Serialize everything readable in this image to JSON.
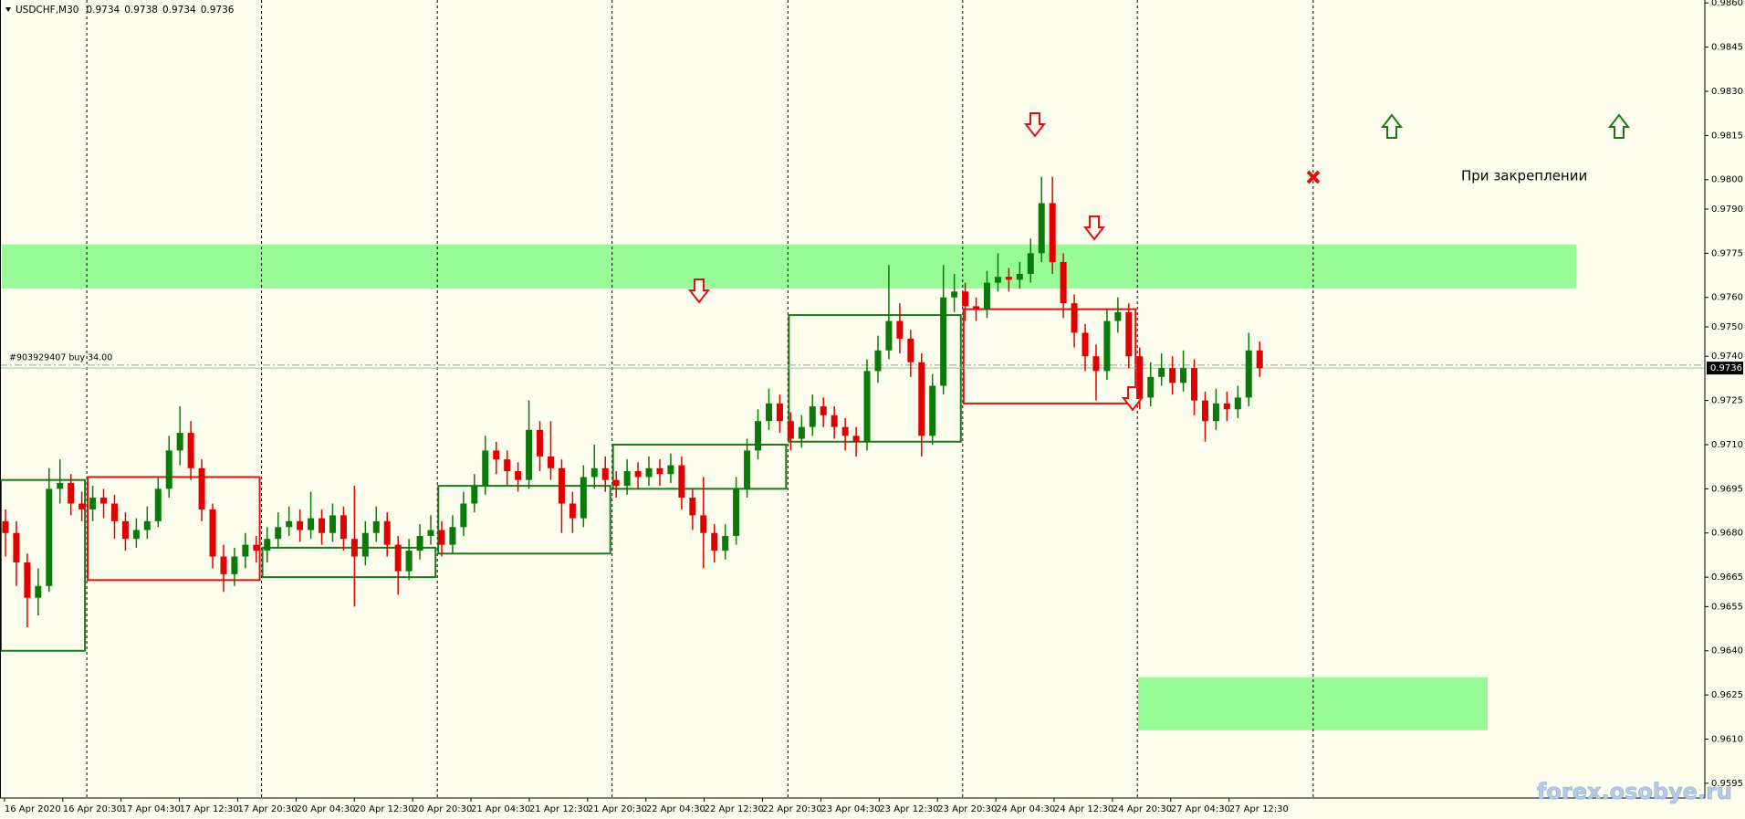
{
  "chart_data": {
    "type": "candlestick",
    "symbol": "USDCHF,M30",
    "quote": [
      0.9734,
      0.9738,
      0.9734,
      0.9736
    ],
    "annotation": "При закреплении",
    "watermark": "forex.osobye.ru",
    "order": {
      "label": "#903929407 buy 34.00",
      "price": 0.9737
    },
    "bid": 0.9736,
    "bull_color": "#0a7a0a",
    "bear_color": "#e00000",
    "x_labels": [
      "16 Apr 2020",
      "16 Apr 20:30",
      "17 Apr 04:30",
      "17 Apr 12:30",
      "17 Apr 20:30",
      "20 Apr 04:30",
      "20 Apr 12:30",
      "20 Apr 20:30",
      "21 Apr 04:30",
      "21 Apr 12:30",
      "21 Apr 20:30",
      "22 Apr 04:30",
      "22 Apr 12:30",
      "22 Apr 20:30",
      "23 Apr 04:30",
      "23 Apr 12:30",
      "23 Apr 20:30",
      "24 Apr 04:30",
      "24 Apr 12:30",
      "24 Apr 20:30",
      "27 Apr 04:30",
      "27 Apr 12:30"
    ],
    "ylim": [
      0.959,
      0.9861
    ],
    "yticks": [
      {
        "value": 0.986,
        "label": "0.9860"
      },
      {
        "value": 0.9845,
        "label": "0.9845"
      },
      {
        "value": 0.983,
        "label": "0.9830"
      },
      {
        "value": 0.9815,
        "label": "0.9815"
      },
      {
        "value": 0.98,
        "label": "0.9800"
      },
      {
        "value": 0.979,
        "label": "0.9790"
      },
      {
        "value": 0.9775,
        "label": "0.9775"
      },
      {
        "value": 0.976,
        "label": "0.9760"
      },
      {
        "value": 0.975,
        "label": "0.9750"
      },
      {
        "value": 0.974,
        "label": "0.9740"
      },
      {
        "value": 0.9725,
        "label": "0.9725"
      },
      {
        "value": 0.971,
        "label": "0.9710"
      },
      {
        "value": 0.9695,
        "label": "0.9695"
      },
      {
        "value": 0.968,
        "label": "0.9680"
      },
      {
        "value": 0.9665,
        "label": "0.9665"
      },
      {
        "value": 0.9655,
        "label": "0.9655"
      },
      {
        "value": 0.964,
        "label": "0.9640"
      },
      {
        "value": 0.9625,
        "label": "0.9625"
      },
      {
        "value": 0.961,
        "label": "0.9610"
      },
      {
        "value": 0.9595,
        "label": "0.9595"
      }
    ],
    "zones": [
      {
        "top": 0.9778,
        "bottom": 0.9763,
        "color": "#98fb98"
      },
      {
        "top": 0.9631,
        "bottom": 0.9613,
        "color": "#98fb98"
      }
    ],
    "boxes": [
      {
        "top": 0.9698,
        "bottom": 0.964,
        "color": "#1a7a1a"
      },
      {
        "top": 0.9699,
        "bottom": 0.9664,
        "color": "#e01010"
      },
      {
        "top": 0.9675,
        "bottom": 0.9665,
        "color": "#1a7a1a"
      },
      {
        "top": 0.9696,
        "bottom": 0.9673,
        "color": "#1a7a1a"
      },
      {
        "top": 0.971,
        "bottom": 0.9695,
        "color": "#1a7a1a"
      },
      {
        "top": 0.9754,
        "bottom": 0.9711,
        "color": "#1a7a1a"
      },
      {
        "top": 0.9756,
        "bottom": 0.9724,
        "color": "#e01010"
      }
    ],
    "candles": [
      [
        0.9684,
        0.9688,
        0.9672,
        0.968
      ],
      [
        0.968,
        0.9684,
        0.9662,
        0.967
      ],
      [
        0.967,
        0.9673,
        0.9648,
        0.9658
      ],
      [
        0.9658,
        0.9668,
        0.9652,
        0.9662
      ],
      [
        0.9662,
        0.9702,
        0.966,
        0.9695
      ],
      [
        0.9695,
        0.9705,
        0.969,
        0.9697
      ],
      [
        0.9697,
        0.97,
        0.9686,
        0.969
      ],
      [
        0.969,
        0.9694,
        0.9684,
        0.9688
      ],
      [
        0.9688,
        0.9696,
        0.9684,
        0.9692
      ],
      [
        0.9692,
        0.9695,
        0.9685,
        0.969
      ],
      [
        0.969,
        0.9693,
        0.9678,
        0.9684
      ],
      [
        0.9684,
        0.9687,
        0.9674,
        0.9678
      ],
      [
        0.9678,
        0.9685,
        0.9675,
        0.9681
      ],
      [
        0.9681,
        0.9689,
        0.9678,
        0.9684
      ],
      [
        0.9684,
        0.9699,
        0.9682,
        0.9695
      ],
      [
        0.9695,
        0.9713,
        0.9692,
        0.9708
      ],
      [
        0.9708,
        0.9723,
        0.9703,
        0.9714
      ],
      [
        0.9714,
        0.9718,
        0.9698,
        0.9702
      ],
      [
        0.9702,
        0.9705,
        0.9684,
        0.9688
      ],
      [
        0.9688,
        0.969,
        0.9668,
        0.9672
      ],
      [
        0.9672,
        0.9676,
        0.966,
        0.9666
      ],
      [
        0.9666,
        0.9675,
        0.9662,
        0.9672
      ],
      [
        0.9672,
        0.968,
        0.9668,
        0.9676
      ],
      [
        0.9676,
        0.9679,
        0.967,
        0.9674
      ],
      [
        0.9674,
        0.9682,
        0.967,
        0.9678
      ],
      [
        0.9678,
        0.9687,
        0.9675,
        0.9682
      ],
      [
        0.9682,
        0.9689,
        0.9679,
        0.9684
      ],
      [
        0.9684,
        0.9688,
        0.9677,
        0.9681
      ],
      [
        0.9681,
        0.9694,
        0.9678,
        0.9685
      ],
      [
        0.9685,
        0.9688,
        0.9676,
        0.968
      ],
      [
        0.968,
        0.969,
        0.9677,
        0.9686
      ],
      [
        0.9686,
        0.9689,
        0.9674,
        0.9678
      ],
      [
        0.9678,
        0.9696,
        0.9655,
        0.9672
      ],
      [
        0.9672,
        0.9684,
        0.9669,
        0.968
      ],
      [
        0.968,
        0.9689,
        0.9677,
        0.9684
      ],
      [
        0.9684,
        0.9687,
        0.9672,
        0.9676
      ],
      [
        0.9676,
        0.9679,
        0.9659,
        0.9667
      ],
      [
        0.9667,
        0.9678,
        0.9664,
        0.9674
      ],
      [
        0.9674,
        0.9683,
        0.9671,
        0.9679
      ],
      [
        0.9679,
        0.9686,
        0.9676,
        0.9681
      ],
      [
        0.9681,
        0.9684,
        0.9672,
        0.9676
      ],
      [
        0.9676,
        0.9686,
        0.9673,
        0.9682
      ],
      [
        0.9682,
        0.9694,
        0.9679,
        0.969
      ],
      [
        0.969,
        0.97,
        0.9687,
        0.9696
      ],
      [
        0.9696,
        0.9713,
        0.9693,
        0.9708
      ],
      [
        0.9708,
        0.9711,
        0.97,
        0.9705
      ],
      [
        0.9705,
        0.9708,
        0.9696,
        0.9701
      ],
      [
        0.9701,
        0.9704,
        0.9694,
        0.9698
      ],
      [
        0.9698,
        0.9725,
        0.9695,
        0.9715
      ],
      [
        0.9715,
        0.9718,
        0.9701,
        0.9706
      ],
      [
        0.9706,
        0.9718,
        0.9698,
        0.9702
      ],
      [
        0.9702,
        0.9705,
        0.968,
        0.969
      ],
      [
        0.969,
        0.9694,
        0.968,
        0.9685
      ],
      [
        0.9685,
        0.9703,
        0.9682,
        0.9699
      ],
      [
        0.9699,
        0.971,
        0.9695,
        0.9702
      ],
      [
        0.9702,
        0.9706,
        0.9694,
        0.9698
      ],
      [
        0.9698,
        0.9701,
        0.9692,
        0.9696
      ],
      [
        0.9696,
        0.9705,
        0.9693,
        0.9701
      ],
      [
        0.9701,
        0.9704,
        0.9695,
        0.9699
      ],
      [
        0.9699,
        0.9706,
        0.9696,
        0.9702
      ],
      [
        0.9702,
        0.9705,
        0.9696,
        0.97
      ],
      [
        0.97,
        0.9707,
        0.9697,
        0.9703
      ],
      [
        0.9703,
        0.9706,
        0.9688,
        0.9692
      ],
      [
        0.9692,
        0.9695,
        0.9681,
        0.9686
      ],
      [
        0.9686,
        0.9699,
        0.9668,
        0.968
      ],
      [
        0.968,
        0.9683,
        0.967,
        0.9674
      ],
      [
        0.9674,
        0.9683,
        0.9671,
        0.9679
      ],
      [
        0.9679,
        0.9699,
        0.9676,
        0.9695
      ],
      [
        0.9695,
        0.9712,
        0.9692,
        0.9708
      ],
      [
        0.9708,
        0.9722,
        0.9705,
        0.9718
      ],
      [
        0.9718,
        0.9729,
        0.9715,
        0.9724
      ],
      [
        0.9724,
        0.9727,
        0.9714,
        0.9718
      ],
      [
        0.9718,
        0.9721,
        0.9708,
        0.9712
      ],
      [
        0.9712,
        0.972,
        0.9709,
        0.9716
      ],
      [
        0.9716,
        0.9727,
        0.9713,
        0.9723
      ],
      [
        0.9723,
        0.9726,
        0.9716,
        0.972
      ],
      [
        0.972,
        0.9723,
        0.9712,
        0.9716
      ],
      [
        0.9716,
        0.9719,
        0.9708,
        0.9713
      ],
      [
        0.9713,
        0.9716,
        0.9706,
        0.9711
      ],
      [
        0.9711,
        0.9739,
        0.9708,
        0.9735
      ],
      [
        0.9735,
        0.9747,
        0.9731,
        0.9742
      ],
      [
        0.9742,
        0.9771,
        0.9739,
        0.9752
      ],
      [
        0.9752,
        0.9758,
        0.9741,
        0.9746
      ],
      [
        0.9746,
        0.9749,
        0.9733,
        0.9738
      ],
      [
        0.9738,
        0.9741,
        0.9706,
        0.9713
      ],
      [
        0.9713,
        0.9734,
        0.971,
        0.973
      ],
      [
        0.973,
        0.9771,
        0.9727,
        0.976
      ],
      [
        0.976,
        0.9768,
        0.9755,
        0.9762
      ],
      [
        0.9762,
        0.9765,
        0.9752,
        0.9757
      ],
      [
        0.9757,
        0.976,
        0.9752,
        0.9756
      ],
      [
        0.9756,
        0.9769,
        0.9753,
        0.9765
      ],
      [
        0.9765,
        0.9775,
        0.9762,
        0.9767
      ],
      [
        0.9767,
        0.977,
        0.9762,
        0.9766
      ],
      [
        0.9766,
        0.9772,
        0.9763,
        0.9768
      ],
      [
        0.9768,
        0.978,
        0.9765,
        0.9775
      ],
      [
        0.9775,
        0.9801,
        0.9772,
        0.9792
      ],
      [
        0.9792,
        0.9801,
        0.9768,
        0.9772
      ],
      [
        0.9772,
        0.9775,
        0.9753,
        0.9758
      ],
      [
        0.9758,
        0.9761,
        0.9743,
        0.9748
      ],
      [
        0.9748,
        0.9751,
        0.9735,
        0.974
      ],
      [
        0.974,
        0.9744,
        0.9725,
        0.9735
      ],
      [
        0.9735,
        0.9756,
        0.9732,
        0.9752
      ],
      [
        0.9752,
        0.976,
        0.9748,
        0.9755
      ],
      [
        0.9755,
        0.9758,
        0.9736,
        0.974
      ],
      [
        0.974,
        0.9743,
        0.9722,
        0.9726
      ],
      [
        0.9726,
        0.9738,
        0.9723,
        0.9733
      ],
      [
        0.9733,
        0.9741,
        0.973,
        0.9736
      ],
      [
        0.9736,
        0.974,
        0.9727,
        0.9731
      ],
      [
        0.9731,
        0.9742,
        0.9728,
        0.9736
      ],
      [
        0.9736,
        0.9739,
        0.972,
        0.9725
      ],
      [
        0.9725,
        0.9728,
        0.9711,
        0.9718
      ],
      [
        0.9718,
        0.9729,
        0.9715,
        0.9724
      ],
      [
        0.9724,
        0.9728,
        0.9718,
        0.9722
      ],
      [
        0.9722,
        0.973,
        0.9719,
        0.9726
      ],
      [
        0.9726,
        0.9748,
        0.9723,
        0.9742
      ],
      [
        0.9742,
        0.9745,
        0.9733,
        0.9736
      ]
    ]
  }
}
